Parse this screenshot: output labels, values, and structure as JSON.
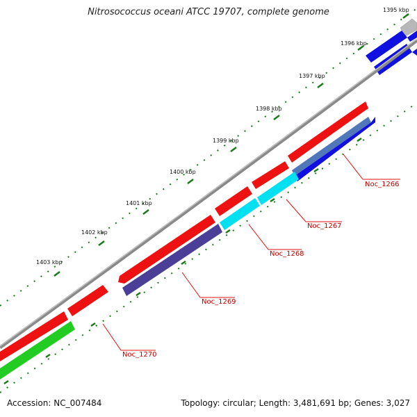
{
  "title": "Nitrosococcus oceani ATCC 19707, complete genome",
  "footer": {
    "accession": "Accession: NC_007484",
    "summary": "Topology: circular; Length: 3,481,691 bp; Genes: 3,027"
  },
  "colors": {
    "backbone": "#8a8a8a",
    "tick": "#1a7a1a",
    "label_line": "#e01010",
    "label_text": "#c00000"
  },
  "ticks": [
    {
      "label": "1395 kbp"
    },
    {
      "label": "1396 kbp"
    },
    {
      "label": "1397 kbp"
    },
    {
      "label": "1398 kbp"
    },
    {
      "label": "1399 kbp"
    },
    {
      "label": "1400 kbp"
    },
    {
      "label": "1401 kbp"
    },
    {
      "label": "1402 kbp"
    },
    {
      "label": "1403 kbp"
    }
  ],
  "gene_labels": [
    {
      "text": "Noc_1266"
    },
    {
      "text": "Noc_1267"
    },
    {
      "text": "Noc_1268"
    },
    {
      "text": "Noc_1269"
    },
    {
      "text": "Noc_1270"
    }
  ]
}
